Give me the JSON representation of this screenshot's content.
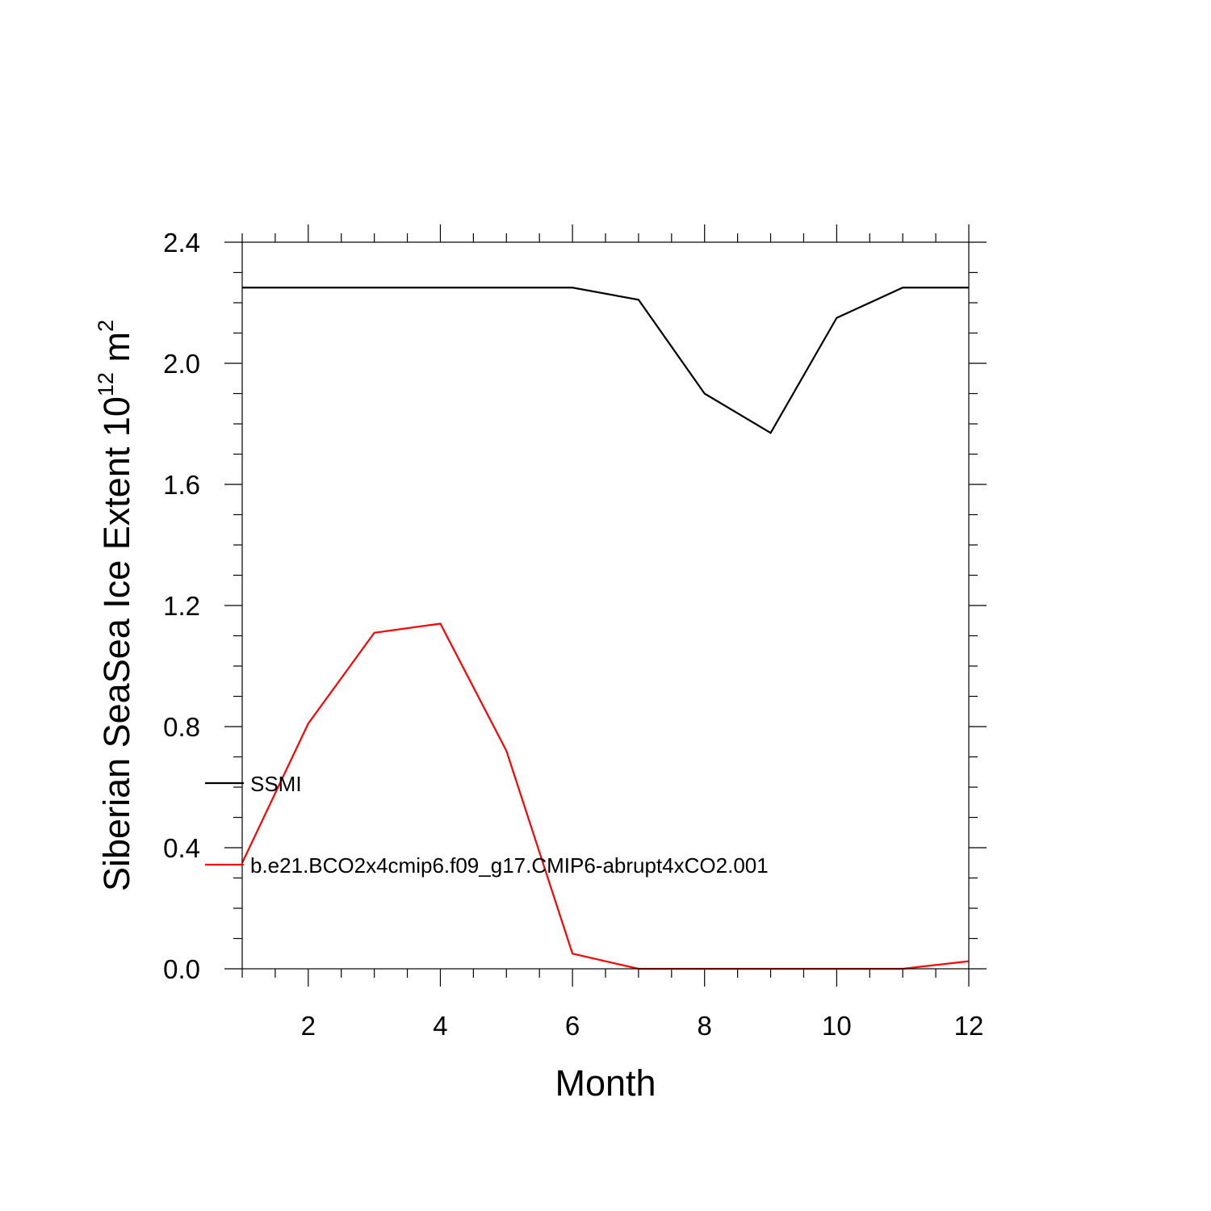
{
  "chart_data": {
    "type": "line",
    "xlabel": "Month",
    "ylabel": {
      "prefix": "Siberian SeaSea Ice Extent 10",
      "exponent": "12",
      "unit": " m",
      "unit_exponent": "2"
    },
    "xlim": [
      1,
      12
    ],
    "ylim": [
      0,
      2.4
    ],
    "x_ticks": [
      2,
      4,
      6,
      8,
      10,
      12
    ],
    "x_tick_labels": [
      "2",
      "4",
      "6",
      "8",
      "10",
      "12"
    ],
    "x_minor_step": 0.5,
    "y_ticks": [
      0,
      0.4,
      0.8,
      1.2,
      1.6,
      2.0,
      2.4
    ],
    "y_tick_labels": [
      "0.0",
      "0.4",
      "0.8",
      "1.2",
      "1.6",
      "2.0",
      "2.4"
    ],
    "y_minor_step": 0.1,
    "grid": false,
    "legend_position": "left, inside plot",
    "x": [
      1,
      2,
      3,
      4,
      5,
      6,
      7,
      8,
      9,
      10,
      11,
      12
    ],
    "series": [
      {
        "name": "SSMI",
        "color": "#000000",
        "values": [
          2.25,
          2.25,
          2.25,
          2.25,
          2.25,
          2.25,
          2.21,
          1.9,
          1.77,
          2.15,
          2.25,
          2.25
        ]
      },
      {
        "name": "b.e21.BCO2x4cmip6.f09_g17.CMIP6-abrupt4xCO2.001",
        "color": "#ff0000",
        "values": [
          0.35,
          0.81,
          1.11,
          1.14,
          0.72,
          0.05,
          0.0,
          0.0,
          0.0,
          0.0,
          0.0,
          0.025
        ]
      }
    ]
  }
}
